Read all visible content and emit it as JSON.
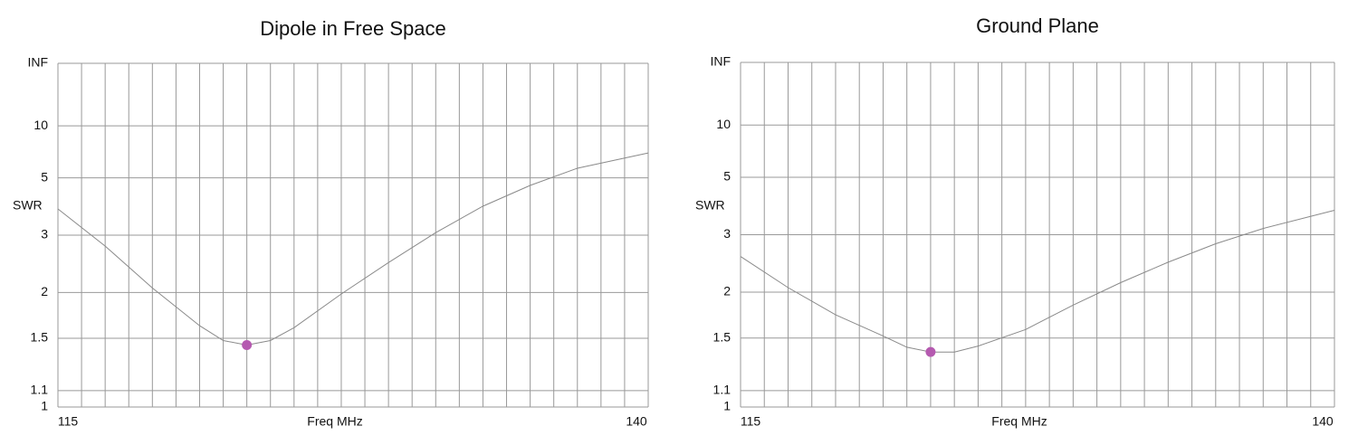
{
  "chart_data": [
    {
      "type": "line",
      "title": "Dipole in Free Space",
      "x_label": "Freq MHz",
      "y_label": "SWR",
      "y_scale": "swr",
      "x": [
        115,
        117,
        119,
        121,
        122,
        123,
        124,
        125,
        127,
        129,
        131,
        133,
        135,
        137,
        140
      ],
      "values": [
        3.72,
        2.76,
        2.06,
        1.62,
        1.48,
        1.44,
        1.48,
        1.6,
        1.98,
        2.45,
        3.06,
        3.81,
        4.63,
        5.55,
        6.67
      ],
      "color": "#8a8a8a",
      "marker": {
        "x": 123,
        "y": 1.44,
        "color": "#b55ab0"
      },
      "xlim": [
        115,
        140
      ],
      "xticks": [
        115,
        140
      ],
      "x_grid_step": 1,
      "ylim": [
        1,
        null
      ],
      "yticks": [
        1,
        1.1,
        1.5,
        2,
        3,
        5,
        10,
        {
          "value": null,
          "label": "INF"
        }
      ],
      "grid": true
    },
    {
      "type": "line",
      "title": "Ground Plane",
      "x_label": "Freq MHz",
      "y_label": "SWR",
      "y_scale": "swr",
      "x": [
        115,
        117,
        119,
        121,
        122,
        123,
        124,
        125,
        127,
        129,
        131,
        133,
        135,
        137,
        140
      ],
      "values": [
        2.55,
        2.06,
        1.73,
        1.52,
        1.42,
        1.38,
        1.38,
        1.43,
        1.58,
        1.84,
        2.13,
        2.45,
        2.8,
        3.15,
        3.66
      ],
      "color": "#8a8a8a",
      "marker": {
        "x": 123,
        "y": 1.38,
        "color": "#b55ab0"
      },
      "xlim": [
        115,
        140
      ],
      "xticks": [
        115,
        140
      ],
      "x_grid_step": 1,
      "ylim": [
        1,
        null
      ],
      "yticks": [
        1,
        1.1,
        1.5,
        2,
        3,
        5,
        10,
        {
          "value": null,
          "label": "INF"
        }
      ],
      "grid": true
    }
  ]
}
